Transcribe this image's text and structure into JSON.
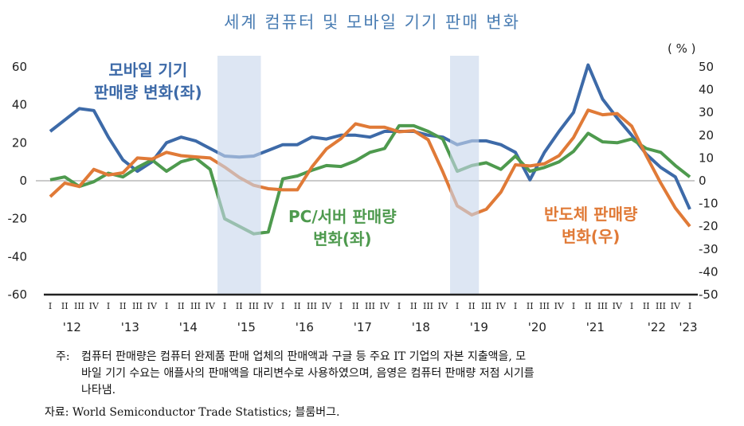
{
  "chart_data": {
    "type": "line",
    "title": "세계 컴퓨터 및 모바일 기기 판매 변화",
    "unit_label": "( % )",
    "x_year_labels": [
      "'12",
      "'13",
      "'14",
      "'15",
      "'16",
      "'17",
      "'18",
      "'19",
      "'20",
      "'21",
      "'22",
      "'23"
    ],
    "quarter_labels": [
      "I",
      "II",
      "III",
      "IV"
    ],
    "x_start": "2012 Q1",
    "x_end": "2023 Q1",
    "y_left": {
      "range": [
        -60,
        60
      ],
      "ticks": [
        "60",
        "40",
        "20",
        "0",
        "-20",
        "-40",
        "-60"
      ]
    },
    "y_right": {
      "range": [
        -50,
        50
      ],
      "ticks": [
        "50",
        "40",
        "30",
        "20",
        "10",
        "0",
        "-10",
        "-20",
        "-30",
        "-40",
        "-50"
      ]
    },
    "shaded_periods": [
      [
        "2015 Q1",
        "2015 Q3"
      ],
      [
        "2019 Q1",
        "2019 Q2"
      ]
    ],
    "series": [
      {
        "name": "모바일 기기 판매량 변화(좌)",
        "axis": "left",
        "color": "#3d6aa8",
        "values": [
          26,
          32,
          38,
          37,
          23,
          11,
          5,
          10,
          20,
          23,
          21,
          17,
          13,
          12.5,
          13,
          16,
          19,
          19,
          23,
          22,
          24,
          24,
          23,
          26,
          26,
          26,
          24,
          23,
          19,
          21,
          21,
          19,
          15,
          0.5,
          15,
          26,
          36,
          61,
          43,
          33,
          24,
          14,
          7,
          2,
          -15
        ]
      },
      {
        "name": "PC/서버 판매량 변화(좌)",
        "axis": "left",
        "color": "#4e9a4e",
        "values": [
          0.5,
          2,
          -3,
          -0.5,
          4,
          2,
          7,
          11,
          5,
          10,
          12,
          6,
          -20,
          -24,
          -28,
          -27,
          1,
          2.5,
          5.5,
          8,
          7.5,
          10.5,
          15,
          17,
          29,
          29,
          26,
          22,
          5,
          8,
          9.5,
          6,
          13,
          5,
          7,
          10,
          15.5,
          25,
          20.5,
          20,
          22,
          17,
          15,
          8,
          2
        ]
      },
      {
        "name": "반도체 판매량 변화(우)",
        "axis": "right",
        "color": "#e07a37",
        "values": [
          -7,
          -1,
          -2.5,
          5,
          2.5,
          3.5,
          10,
          9.5,
          12.5,
          11,
          10.5,
          10,
          6,
          1.5,
          -2,
          -3.5,
          -4,
          -4,
          6,
          14,
          18.5,
          25,
          23.5,
          23.5,
          21.5,
          22,
          18,
          4,
          -11,
          -15,
          -12.5,
          -5,
          7,
          6.5,
          7.5,
          11,
          19,
          31,
          29,
          29.5,
          24,
          11,
          -1,
          -12,
          -20
        ]
      }
    ]
  },
  "annotations": {
    "mobile": [
      "모바일 기기",
      "판매량 변화(좌)"
    ],
    "pc": [
      "PC/서버 판매량",
      "변화(좌)"
    ],
    "semi": [
      "반도체 판매량",
      "변화(우)"
    ]
  },
  "notes": {
    "note_prefix": "주:",
    "note_lines": [
      "컴퓨터 판매량은 컴퓨터 완제품 판매 업체의 판매액과 구글 등 주요 IT 기업의 자본 지출액을, 모",
      "바일 기기 수요는 애플사의 판매액을 대리변수로 사용하였으며, 음영은 컴퓨터 판매량 저점 시기를",
      "나타냄."
    ],
    "source": "자료: World Semiconductor Trade Statistics; 블룸버그."
  }
}
